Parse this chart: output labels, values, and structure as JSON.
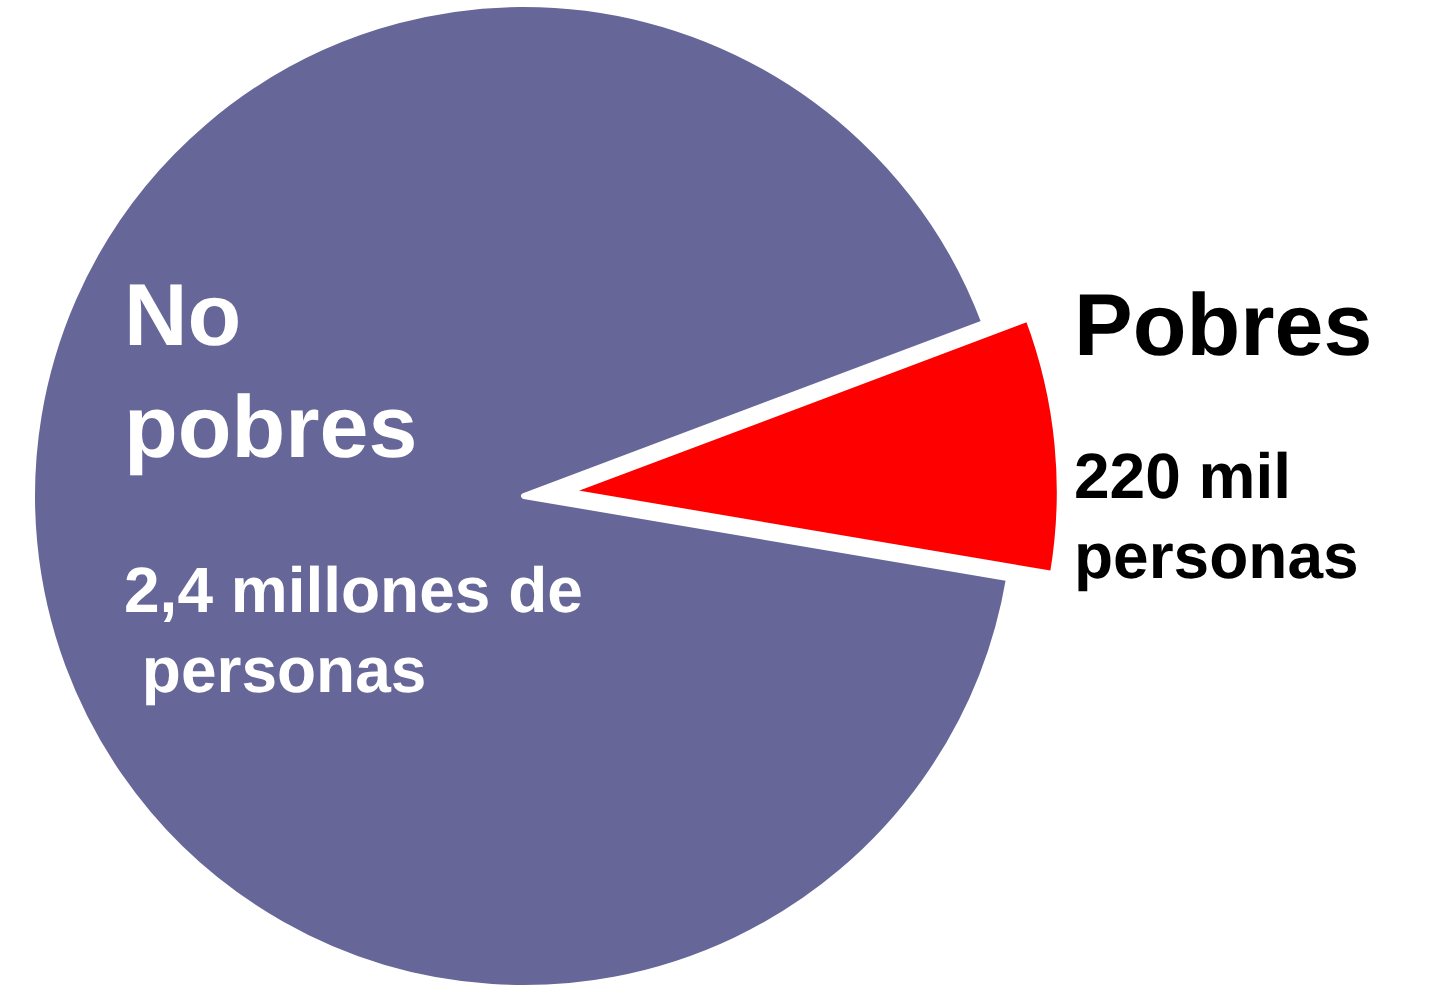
{
  "chart_data": {
    "type": "pie",
    "categories": [
      "No pobres",
      "Pobres"
    ],
    "values": [
      91.6,
      8.4
    ],
    "colors": [
      "#666699",
      "#ff0000"
    ],
    "annotations": [
      "2,4 millones de personas",
      "220 mil personas"
    ],
    "legend": false
  }
}
